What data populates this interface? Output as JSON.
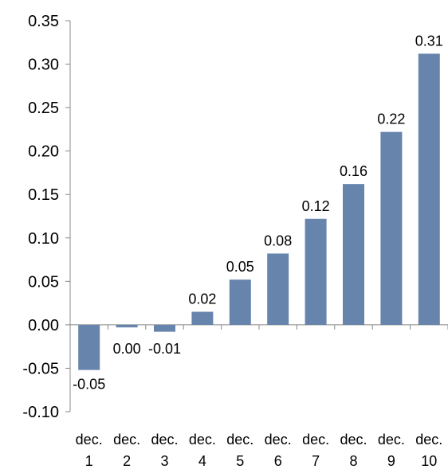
{
  "chart_data": {
    "type": "bar",
    "title": "",
    "xlabel": "",
    "ylabel": "",
    "categories": [
      [
        "dec.",
        "1"
      ],
      [
        "dec.",
        "2"
      ],
      [
        "dec.",
        "3"
      ],
      [
        "dec.",
        "4"
      ],
      [
        "dec.",
        "5"
      ],
      [
        "dec.",
        "6"
      ],
      [
        "dec.",
        "7"
      ],
      [
        "dec.",
        "8"
      ],
      [
        "dec.",
        "9"
      ],
      [
        "dec.",
        "10"
      ]
    ],
    "values": [
      -0.052,
      -0.003,
      -0.008,
      0.015,
      0.052,
      0.082,
      0.122,
      0.162,
      0.222,
      0.312
    ],
    "data_labels": [
      "-0.05",
      "0.00",
      "-0.01",
      "0.02",
      "0.05",
      "0.08",
      "0.12",
      "0.16",
      "0.22",
      "0.31"
    ],
    "ylim": [
      -0.1,
      0.35
    ],
    "yticks": [
      -0.1,
      -0.05,
      0.0,
      0.05,
      0.1,
      0.15,
      0.2,
      0.25,
      0.3,
      0.35
    ],
    "ytick_labels": [
      "-0.10",
      "-0.05",
      "0.00",
      "0.05",
      "0.10",
      "0.15",
      "0.20",
      "0.25",
      "0.30",
      "0.35"
    ],
    "grid": false,
    "legend": "none",
    "colors": {
      "bar": "#6784ad",
      "axis": "#888888",
      "text": "#000000"
    }
  }
}
